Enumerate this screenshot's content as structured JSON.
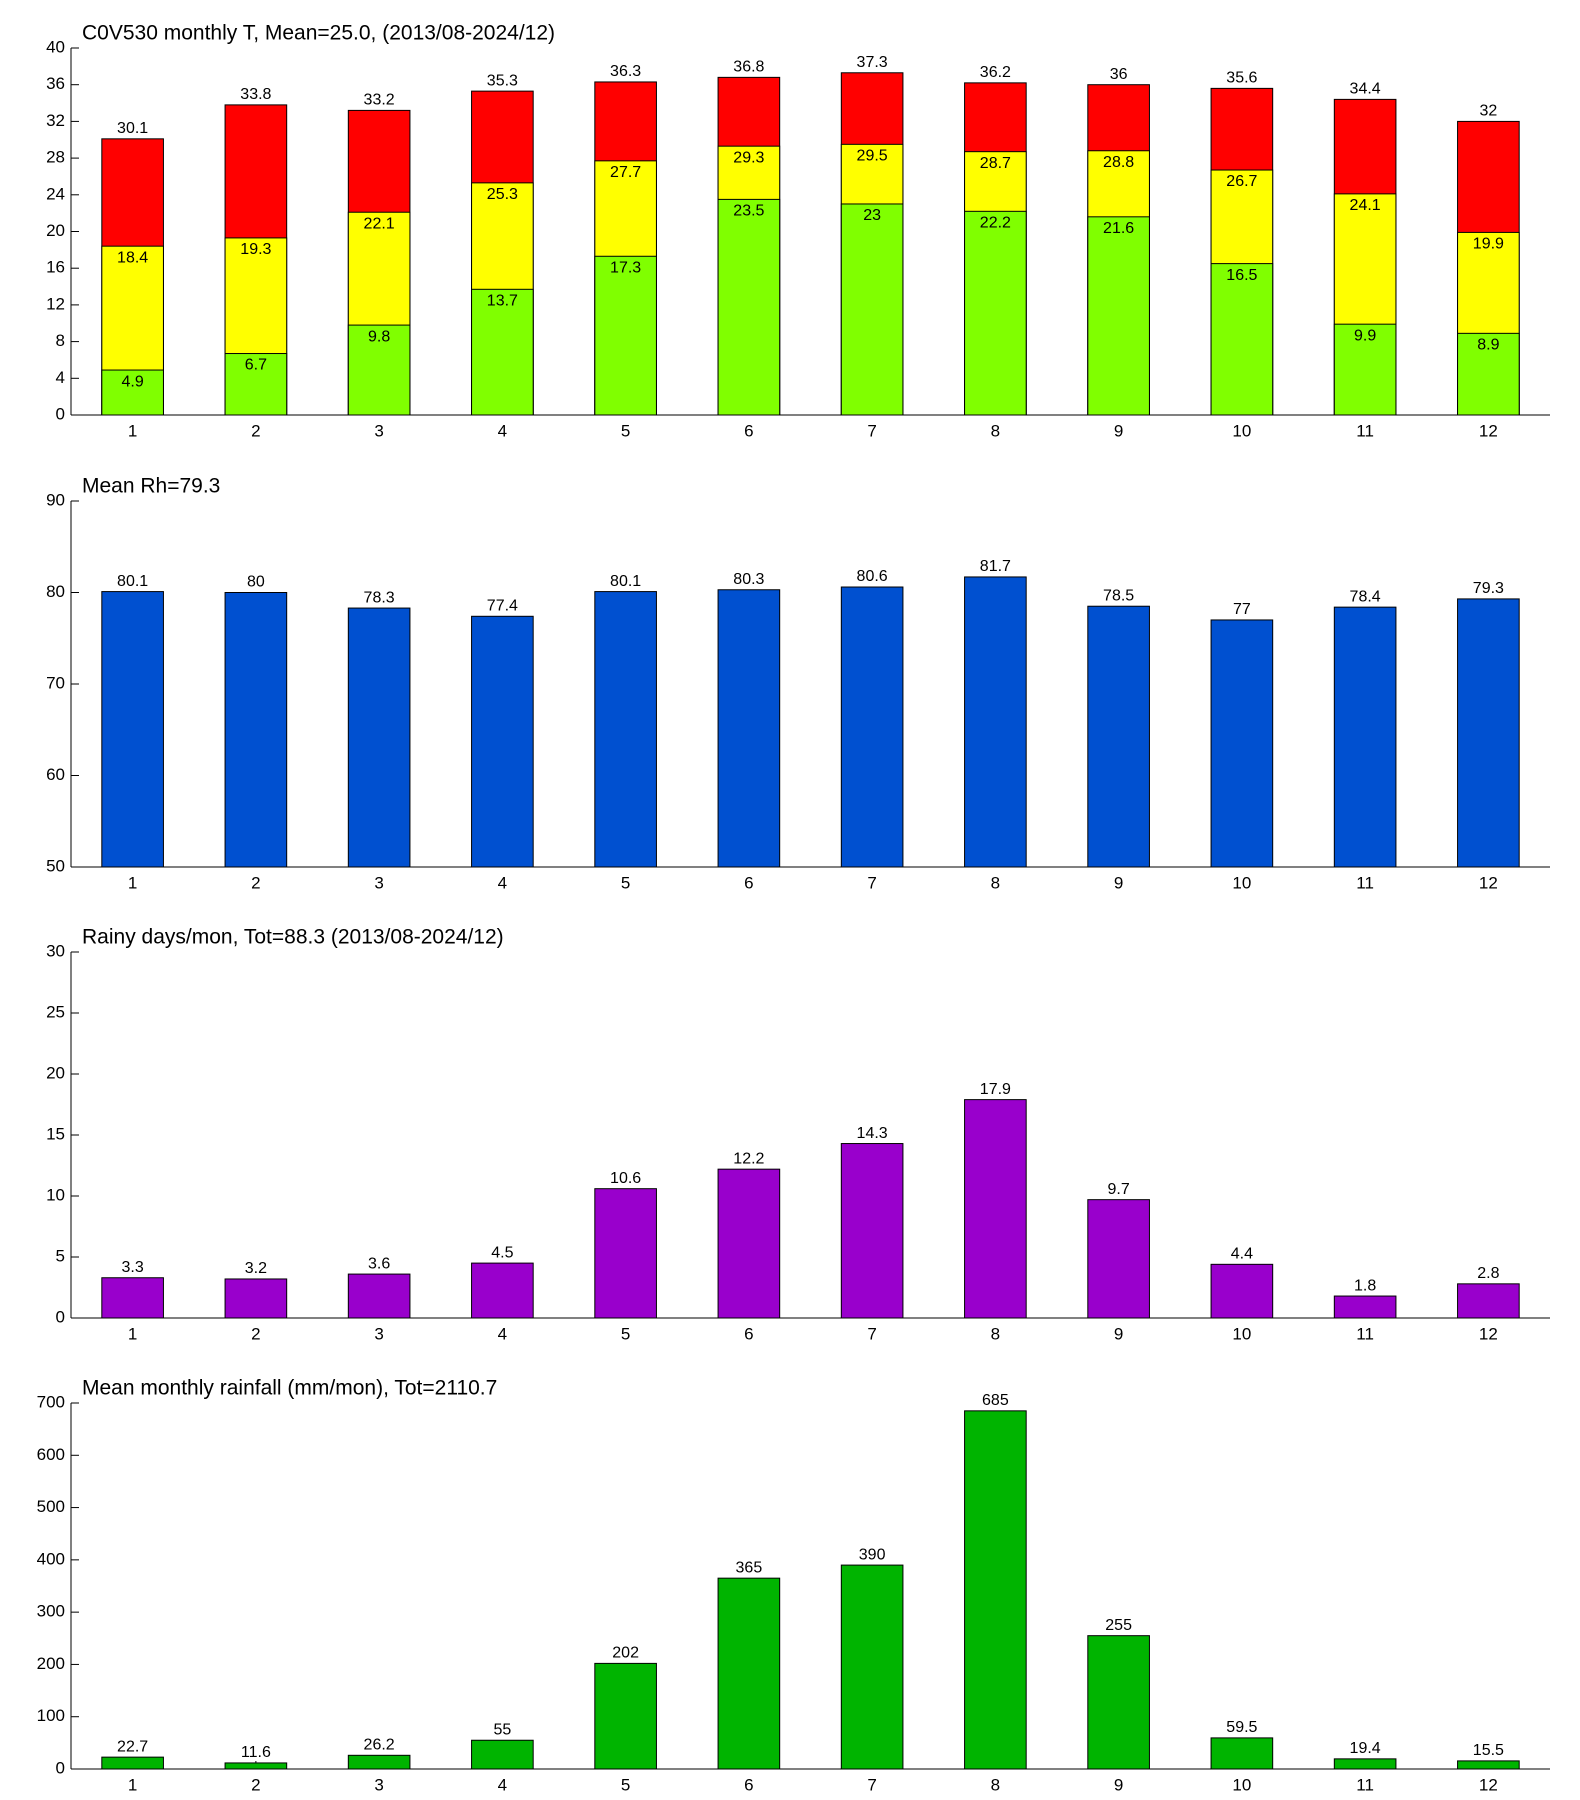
{
  "chart_data": [
    {
      "type": "bar",
      "barmode": "overlay",
      "title": "C0V530 monthly T, Mean=25.0, (2013/08-2024/12)",
      "categories": [
        1,
        2,
        3,
        4,
        5,
        6,
        7,
        8,
        9,
        10,
        11,
        12
      ],
      "series": [
        {
          "color": "#ff0000",
          "values": [
            30.1,
            33.8,
            33.2,
            35.3,
            36.3,
            36.8,
            37.3,
            36.2,
            36,
            35.6,
            34.4,
            32
          ]
        },
        {
          "color": "#ffff00",
          "values": [
            18.4,
            19.3,
            22.1,
            25.3,
            27.7,
            29.3,
            29.5,
            28.7,
            28.8,
            26.7,
            24.1,
            19.9
          ]
        },
        {
          "color": "#80ff00",
          "values": [
            4.9,
            6.7,
            9.8,
            13.7,
            17.3,
            23.5,
            23,
            22.2,
            21.6,
            16.5,
            9.9,
            8.9
          ]
        }
      ],
      "ylim": [
        0,
        40
      ],
      "yticks": [
        0,
        4,
        8,
        12,
        16,
        20,
        24,
        28,
        32,
        36,
        40
      ]
    },
    {
      "type": "bar",
      "title": "Mean Rh=79.3",
      "categories": [
        1,
        2,
        3,
        4,
        5,
        6,
        7,
        8,
        9,
        10,
        11,
        12
      ],
      "series": [
        {
          "color": "#0050d0",
          "values": [
            80.1,
            80,
            78.3,
            77.4,
            80.1,
            80.3,
            80.6,
            81.7,
            78.5,
            77,
            78.4,
            79.3
          ]
        }
      ],
      "ylim": [
        50,
        90
      ],
      "yticks": [
        50,
        60,
        70,
        80,
        90
      ]
    },
    {
      "type": "bar",
      "title": "Rainy days/mon, Tot=88.3 (2013/08-2024/12)",
      "categories": [
        1,
        2,
        3,
        4,
        5,
        6,
        7,
        8,
        9,
        10,
        11,
        12
      ],
      "series": [
        {
          "color": "#9900cc",
          "values": [
            3.3,
            3.2,
            3.6,
            4.5,
            10.6,
            12.2,
            14.3,
            17.9,
            9.7,
            4.4,
            1.8,
            2.8
          ]
        }
      ],
      "ylim": [
        0,
        30
      ],
      "yticks": [
        0,
        5,
        10,
        15,
        20,
        25,
        30
      ]
    },
    {
      "type": "bar",
      "title": "Mean monthly rainfall (mm/mon), Tot=2110.7",
      "categories": [
        1,
        2,
        3,
        4,
        5,
        6,
        7,
        8,
        9,
        10,
        11,
        12
      ],
      "series": [
        {
          "color": "#00b400",
          "values": [
            22.7,
            11.6,
            26.2,
            55,
            202,
            365,
            390,
            685,
            255,
            59.5,
            19.4,
            15.5
          ]
        }
      ],
      "ylim": [
        0,
        700
      ],
      "yticks": [
        0,
        100,
        200,
        300,
        400,
        500,
        600,
        700
      ]
    }
  ]
}
